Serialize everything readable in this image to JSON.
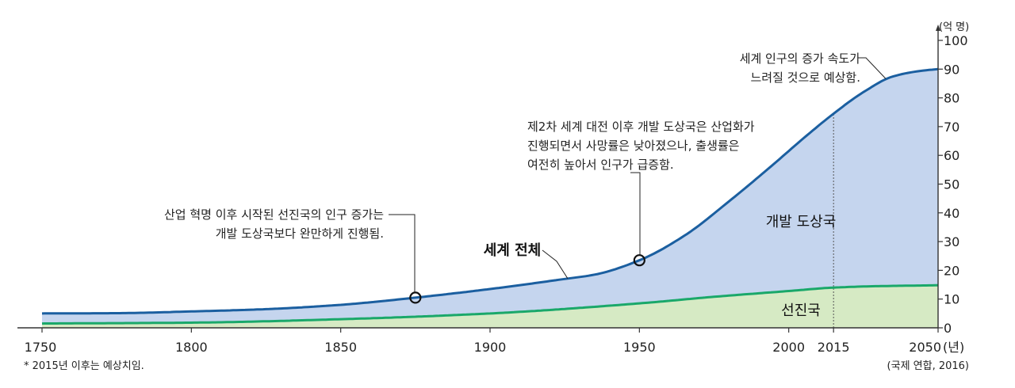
{
  "chart_data": {
    "type": "area",
    "xlim": [
      1750,
      2050
    ],
    "ylim": [
      0,
      100
    ],
    "unit_label": "(억 명)",
    "x_unit_label": "(년)",
    "x_ticks": [
      1750,
      1800,
      1850,
      1900,
      1950,
      2000,
      2015,
      2050
    ],
    "y_ticks": [
      0,
      10,
      20,
      30,
      40,
      50,
      60,
      70,
      80,
      90,
      100
    ],
    "series": [
      {
        "name": "세계 전체",
        "color": "#1b5fa0",
        "fill": "#c5d5ee",
        "x": [
          1750,
          1775,
          1800,
          1825,
          1850,
          1875,
          1900,
          1925,
          1935,
          1950,
          1965,
          1980,
          1995,
          2005,
          2015,
          2025,
          2035,
          2045,
          2050
        ],
        "values": [
          5.0,
          5.1,
          5.7,
          6.5,
          8.0,
          10.5,
          13.5,
          17.0,
          18.5,
          23.5,
          32.0,
          44.0,
          57.0,
          66.0,
          74.5,
          82.0,
          87.5,
          89.5,
          90.0
        ]
      },
      {
        "name": "선진국",
        "color": "#1aa86a",
        "fill": "#d6eac4",
        "x": [
          1750,
          1800,
          1850,
          1900,
          1950,
          1975,
          2000,
          2015,
          2030,
          2050
        ],
        "values": [
          1.5,
          1.8,
          3.0,
          5.0,
          8.5,
          10.8,
          12.8,
          14.0,
          14.5,
          14.8
        ]
      }
    ],
    "region_labels": {
      "developing": "개발 도상국",
      "developed": "선진국"
    },
    "series_label": "세계 전체",
    "markers": [
      {
        "x": 1875,
        "y": 10.5
      },
      {
        "x": 1950,
        "y": 23.5
      }
    ],
    "dashed_year": 2015,
    "annotations": [
      {
        "lines": [
          "산업 혁명 이후 시작된 선진국의 인구 증가는",
          "개발 도상국보다 완만하게 진행됨."
        ]
      },
      {
        "lines": [
          "제2차 세계 대전 이후 개발 도상국은 산업화가",
          "진행되면서 사망률은 낮아졌으나, 출생률은",
          "여전히 높아서 인구가 급증함."
        ]
      },
      {
        "lines": [
          "세계 인구의 증가 속도가",
          "느려질 것으로 예상함."
        ]
      }
    ],
    "footnote": "* 2015년 이후는 예상치임.",
    "source": "(국제 연합, 2016)"
  }
}
